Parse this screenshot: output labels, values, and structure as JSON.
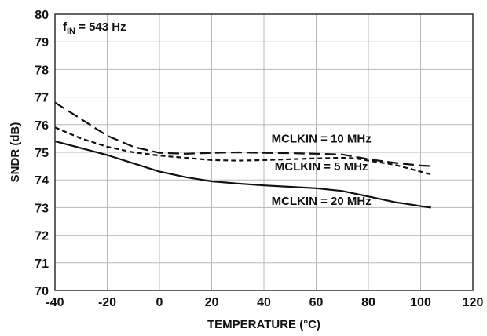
{
  "chart_data": {
    "type": "line",
    "xlabel": "TEMPERATURE (°C)",
    "ylabel": "SNDR (dB)",
    "xlim": [
      -40,
      120
    ],
    "ylim": [
      70,
      80
    ],
    "xticks": [
      "-40",
      "-20",
      "0",
      "20",
      "40",
      "60",
      "80",
      "100",
      "120"
    ],
    "yticks": [
      "70",
      "71",
      "72",
      "73",
      "74",
      "75",
      "76",
      "77",
      "78",
      "79",
      "80"
    ],
    "grid": true,
    "annotation": {
      "main": "f",
      "sub": "IN",
      "rest": " = 543 Hz"
    },
    "series": [
      {
        "name": "MCLKIN = 10 MHz",
        "style": "long-dash",
        "x": [
          -40,
          -30,
          -20,
          -10,
          0,
          10,
          20,
          30,
          40,
          50,
          60,
          70,
          80,
          90,
          100,
          104
        ],
        "y": [
          76.8,
          76.2,
          75.6,
          75.2,
          74.98,
          74.95,
          74.98,
          75.0,
          74.98,
          74.97,
          74.95,
          74.92,
          74.75,
          74.62,
          74.52,
          74.5
        ]
      },
      {
        "name": "MCLKIN = 5 MHz",
        "style": "short-dash",
        "x": [
          -40,
          -30,
          -20,
          -10,
          0,
          10,
          20,
          30,
          40,
          50,
          60,
          70,
          75,
          80,
          90,
          100,
          104
        ],
        "y": [
          75.9,
          75.5,
          75.2,
          75.0,
          74.88,
          74.8,
          74.72,
          74.7,
          74.72,
          74.75,
          74.78,
          74.8,
          74.78,
          74.7,
          74.55,
          74.3,
          74.2
        ]
      },
      {
        "name": "MCLKIN = 20 MHz",
        "style": "solid",
        "x": [
          -40,
          -30,
          -20,
          -10,
          0,
          10,
          20,
          30,
          40,
          50,
          60,
          70,
          75,
          80,
          85,
          90,
          100,
          104
        ],
        "y": [
          75.4,
          75.15,
          74.9,
          74.6,
          74.3,
          74.1,
          73.95,
          73.87,
          73.8,
          73.75,
          73.7,
          73.6,
          73.5,
          73.4,
          73.3,
          73.2,
          73.05,
          73.0
        ]
      }
    ],
    "labels": [
      {
        "text": "MCLKIN = 10 MHz",
        "x": 62,
        "y": 75.35
      },
      {
        "text": "MCLKIN = 5 MHz",
        "x": 62,
        "y": 74.35
      },
      {
        "text": "MCLKIN = 20 MHz",
        "x": 62,
        "y": 73.1
      }
    ]
  }
}
